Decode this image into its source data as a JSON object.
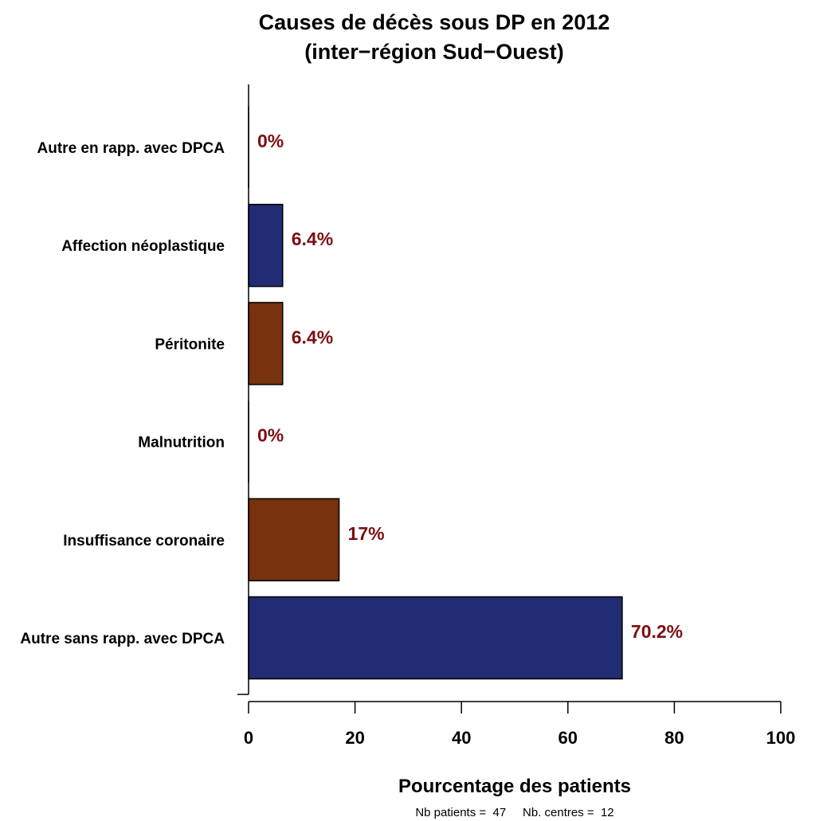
{
  "chart_data": {
    "type": "bar",
    "orientation": "horizontal",
    "title": "Causes de décès sous DP en 2012",
    "subtitle": "(inter−région Sud−Ouest)",
    "xlabel": "Pourcentage des patients",
    "ylabel": "",
    "xlim": [
      0,
      100
    ],
    "x_ticks": [
      0,
      20,
      40,
      60,
      80,
      100
    ],
    "categories": [
      "Autre en rapp. avec DPCA",
      "Affection néoplastique",
      "Péritonite",
      "Malnutrition",
      "Insuffisance coronaire",
      "Autre sans rapp. avec DPCA"
    ],
    "values": [
      0,
      6.4,
      6.4,
      0,
      17,
      70.2
    ],
    "data_labels": [
      "0%",
      "6.4%",
      "6.4%",
      "0%",
      "17%",
      "70.2%"
    ],
    "bar_colors": [
      "#222c73",
      "#222c73",
      "#76330e",
      "#76330e",
      "#76330e",
      "#222c73"
    ],
    "label_color": "#7b0e12",
    "grid": false,
    "legend": "none",
    "footnote": "Nb patients =  47     Nb. centres =  12"
  }
}
